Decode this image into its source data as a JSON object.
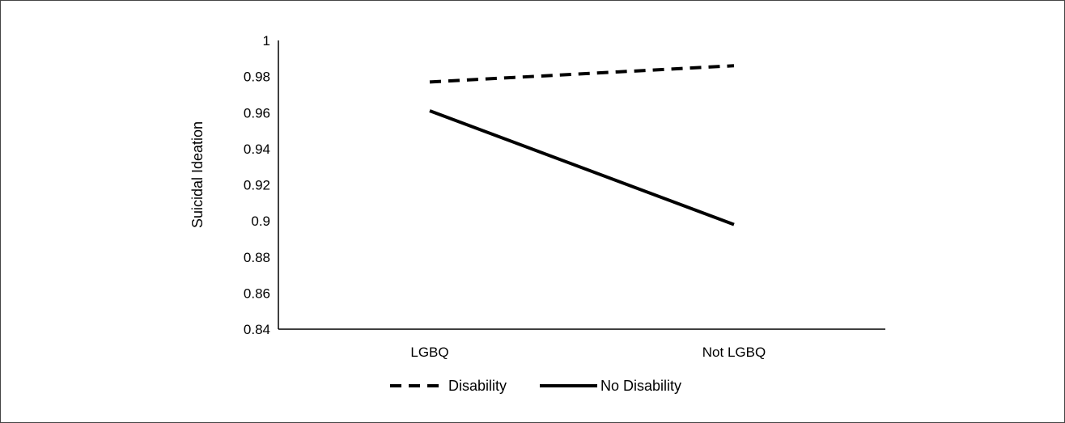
{
  "chart_data": {
    "type": "line",
    "title": "",
    "xlabel": "",
    "ylabel": "Suicidal Ideation",
    "categories": [
      "LGBQ",
      "Not LGBQ"
    ],
    "ylim": [
      0.84,
      1
    ],
    "yticks": [
      0.84,
      0.86,
      0.88,
      0.9,
      0.92,
      0.94,
      0.96,
      0.98,
      1
    ],
    "ytick_labels": [
      "0.84",
      "0.86",
      "0.88",
      "0.9",
      "0.92",
      "0.94",
      "0.96",
      "0.98",
      "1"
    ],
    "grid": false,
    "legend_position": "bottom",
    "series": [
      {
        "name": "Disability",
        "values": [
          0.977,
          0.986
        ],
        "line_style": "dashed",
        "color": "#000000"
      },
      {
        "name": "No Disability",
        "values": [
          0.961,
          0.898
        ],
        "line_style": "solid",
        "color": "#000000"
      }
    ]
  }
}
